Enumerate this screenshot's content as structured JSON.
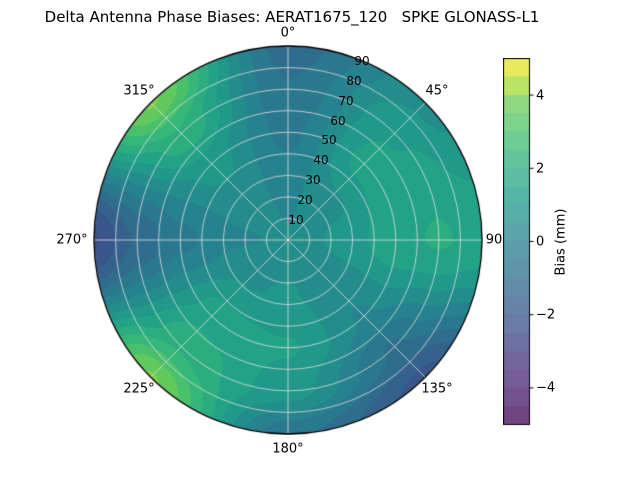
{
  "chart_data": {
    "type": "heatmap",
    "projection": "polar",
    "title": "Delta Antenna Phase Biases: AERAT1675_120   SPKE GLONASS-L1",
    "angular_tick_labels": [
      "0°",
      "45°",
      "90",
      "135°",
      "180°",
      "225°",
      "270°",
      "315°"
    ],
    "radial_tick_labels": [
      "10",
      "20",
      "30",
      "40",
      "50",
      "60",
      "70",
      "80",
      "90"
    ],
    "colorbar": {
      "label": "Bias (mm)",
      "tick_labels": [
        "4",
        "2",
        "0",
        "−2",
        "−4"
      ],
      "tick_values": [
        4,
        2,
        0,
        -2,
        -4
      ],
      "vmin": -5,
      "vmax": 5,
      "colormap": "viridis",
      "colormap_stops": [
        {
          "t": 0.0,
          "color": "#440154"
        },
        {
          "t": 0.125,
          "color": "#482878"
        },
        {
          "t": 0.25,
          "color": "#3e4a89"
        },
        {
          "t": 0.375,
          "color": "#31688e"
        },
        {
          "t": 0.5,
          "color": "#26828e"
        },
        {
          "t": 0.625,
          "color": "#1f9e89"
        },
        {
          "t": 0.75,
          "color": "#35b779"
        },
        {
          "t": 0.875,
          "color": "#6dcd59"
        },
        {
          "t": 0.9375,
          "color": "#b4de2c"
        },
        {
          "t": 1.0,
          "color": "#fde725"
        }
      ]
    },
    "levels_step_mm": 0.5,
    "grid": {
      "azimuth_deg": [
        0,
        45,
        90,
        135,
        180,
        225,
        270,
        315,
        360
      ],
      "zenith_deg": [
        0,
        25,
        50,
        70,
        90
      ],
      "bias_mm": [
        [
          0.3,
          0.3,
          0.3,
          0.3,
          0.3,
          0.3,
          0.3,
          0.3,
          0.3
        ],
        [
          0.1,
          0.6,
          0.9,
          0.5,
          0.8,
          0.7,
          0.2,
          0.4,
          0.1
        ],
        [
          -0.4,
          1.4,
          1.6,
          0.2,
          1.3,
          1.5,
          -0.4,
          1.0,
          -0.4
        ],
        [
          -0.7,
          1.2,
          1.8,
          -0.8,
          1.0,
          2.2,
          -1.2,
          2.2,
          -0.7
        ],
        [
          -1.0,
          0.6,
          1.6,
          -1.9,
          -0.6,
          3.8,
          -2.3,
          3.8,
          -1.0
        ]
      ]
    }
  }
}
